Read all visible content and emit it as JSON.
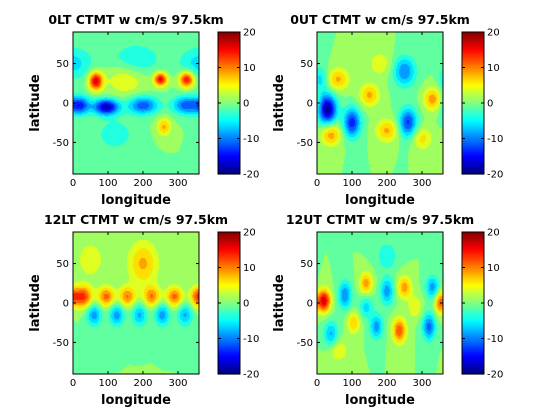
{
  "chart_data": [
    {
      "type": "heatmap",
      "title": "0LT CTMT w cm/s 97.5km",
      "xlabel": "longitude",
      "ylabel": "latitude",
      "xlim": [
        0,
        360
      ],
      "ylim": [
        -90,
        90
      ],
      "x_ticks": [
        0,
        100,
        200,
        300
      ],
      "y_ticks": [
        50,
        0,
        -50
      ],
      "colorbar": {
        "range": [
          -20,
          20
        ],
        "ticks": [
          20,
          10,
          0,
          -10,
          -20
        ]
      },
      "features": [
        {
          "lon": 65,
          "lat": 28,
          "w": 17,
          "sx": 14,
          "sy": 8
        },
        {
          "lon": 250,
          "lat": 30,
          "w": 16,
          "sx": 13,
          "sy": 6
        },
        {
          "lon": 325,
          "lat": 30,
          "w": 16,
          "sx": 15,
          "sy": 7
        },
        {
          "lon": 150,
          "lat": 30,
          "w": 5,
          "sx": 40,
          "sy": 14
        },
        {
          "lon": 20,
          "lat": -3,
          "w": -13,
          "sx": 20,
          "sy": 8
        },
        {
          "lon": 95,
          "lat": -5,
          "w": -18,
          "sx": 25,
          "sy": 7
        },
        {
          "lon": 200,
          "lat": -3,
          "w": -12,
          "sx": 30,
          "sy": 8
        },
        {
          "lon": 325,
          "lat": -3,
          "w": -12,
          "sx": 28,
          "sy": 8
        },
        {
          "lon": 0,
          "lat": 50,
          "w": -6,
          "sx": 40,
          "sy": 15
        },
        {
          "lon": 180,
          "lat": 55,
          "w": -5,
          "sx": 50,
          "sy": 15
        },
        {
          "lon": 260,
          "lat": -30,
          "w": 8,
          "sx": 14,
          "sy": 8
        },
        {
          "lon": 120,
          "lat": -40,
          "w": -4,
          "sx": 40,
          "sy": 15
        }
      ]
    },
    {
      "type": "heatmap",
      "title": "0UT CTMT w cm/s 97.5km",
      "xlabel": "longitude",
      "ylabel": "latitude",
      "xlim": [
        0,
        360
      ],
      "ylim": [
        -90,
        90
      ],
      "x_ticks": [
        0,
        100,
        200,
        300
      ],
      "y_ticks": [
        50,
        0,
        -50
      ],
      "colorbar": {
        "range": [
          -20,
          20
        ],
        "ticks": [
          20,
          10,
          0,
          -10,
          -20
        ]
      },
      "features": [
        {
          "lon": 30,
          "lat": -8,
          "w": -19,
          "sx": 18,
          "sy": 13
        },
        {
          "lon": 250,
          "lat": 40,
          "w": -10,
          "sx": 22,
          "sy": 13
        },
        {
          "lon": 60,
          "lat": 30,
          "w": 8,
          "sx": 22,
          "sy": 10
        },
        {
          "lon": 150,
          "lat": 10,
          "w": 8,
          "sx": 20,
          "sy": 10
        },
        {
          "lon": 330,
          "lat": 5,
          "w": 9,
          "sx": 18,
          "sy": 10
        },
        {
          "lon": 100,
          "lat": -25,
          "w": -14,
          "sx": 17,
          "sy": 13
        },
        {
          "lon": 260,
          "lat": -25,
          "w": -13,
          "sx": 18,
          "sy": 13
        },
        {
          "lon": 40,
          "lat": -40,
          "w": 9,
          "sx": 20,
          "sy": 10
        },
        {
          "lon": 200,
          "lat": -35,
          "w": 8,
          "sx": 22,
          "sy": 10
        },
        {
          "lon": 300,
          "lat": -45,
          "w": 6,
          "sx": 20,
          "sy": 10
        },
        {
          "lon": 10,
          "lat": 30,
          "w": -6,
          "sx": 15,
          "sy": 12
        },
        {
          "lon": 180,
          "lat": 50,
          "w": 4,
          "sx": 25,
          "sy": 12
        }
      ]
    },
    {
      "type": "heatmap",
      "title": "12LT CTMT w cm/s 97.5km",
      "xlabel": "longitude",
      "ylabel": "latitude",
      "xlim": [
        0,
        360
      ],
      "ylim": [
        -90,
        90
      ],
      "x_ticks": [
        0,
        100,
        200,
        300
      ],
      "y_ticks": [
        50,
        0,
        -50
      ],
      "colorbar": {
        "range": [
          -20,
          20
        ],
        "ticks": [
          20,
          10,
          0,
          -10,
          -20
        ]
      },
      "features": [
        {
          "lon": 30,
          "lat": 8,
          "w": 13,
          "sx": 18,
          "sy": 10
        },
        {
          "lon": 95,
          "lat": 8,
          "w": 11,
          "sx": 17,
          "sy": 9
        },
        {
          "lon": 155,
          "lat": 8,
          "w": 10,
          "sx": 17,
          "sy": 9
        },
        {
          "lon": 225,
          "lat": 8,
          "w": 10,
          "sx": 17,
          "sy": 9
        },
        {
          "lon": 290,
          "lat": 8,
          "w": 11,
          "sx": 17,
          "sy": 9
        },
        {
          "lon": 355,
          "lat": 8,
          "w": 11,
          "sx": 15,
          "sy": 9
        },
        {
          "lon": 60,
          "lat": -15,
          "w": -9,
          "sx": 15,
          "sy": 10
        },
        {
          "lon": 125,
          "lat": -15,
          "w": -9,
          "sx": 15,
          "sy": 10
        },
        {
          "lon": 190,
          "lat": -15,
          "w": -8,
          "sx": 15,
          "sy": 10
        },
        {
          "lon": 255,
          "lat": -15,
          "w": -9,
          "sx": 15,
          "sy": 10
        },
        {
          "lon": 320,
          "lat": -15,
          "w": -8,
          "sx": 15,
          "sy": 10
        },
        {
          "lon": 200,
          "lat": 50,
          "w": 8,
          "sx": 30,
          "sy": 20
        },
        {
          "lon": 50,
          "lat": 55,
          "w": 5,
          "sx": 25,
          "sy": 15
        }
      ]
    },
    {
      "type": "heatmap",
      "title": "12UT CTMT w cm/s 97.5km",
      "xlabel": "longitude",
      "ylabel": "latitude",
      "xlim": [
        0,
        360
      ],
      "ylim": [
        -90,
        90
      ],
      "x_ticks": [
        0,
        100,
        200,
        300
      ],
      "y_ticks": [
        50,
        0,
        -50
      ],
      "colorbar": {
        "range": [
          -20,
          20
        ],
        "ticks": [
          20,
          10,
          0,
          -10,
          -20
        ]
      },
      "features": [
        {
          "lon": 20,
          "lat": 3,
          "w": 17,
          "sx": 13,
          "sy": 10
        },
        {
          "lon": 80,
          "lat": 10,
          "w": -10,
          "sx": 13,
          "sy": 12
        },
        {
          "lon": 140,
          "lat": 25,
          "w": 9,
          "sx": 13,
          "sy": 10
        },
        {
          "lon": 250,
          "lat": 20,
          "w": 9,
          "sx": 14,
          "sy": 10
        },
        {
          "lon": 200,
          "lat": 15,
          "w": -9,
          "sx": 13,
          "sy": 12
        },
        {
          "lon": 330,
          "lat": 20,
          "w": -9,
          "sx": 13,
          "sy": 10
        },
        {
          "lon": 235,
          "lat": -35,
          "w": 12,
          "sx": 14,
          "sy": 11
        },
        {
          "lon": 170,
          "lat": -30,
          "w": -9,
          "sx": 13,
          "sy": 11
        },
        {
          "lon": 105,
          "lat": -25,
          "w": 7,
          "sx": 13,
          "sy": 10
        },
        {
          "lon": 320,
          "lat": -30,
          "w": -11,
          "sx": 13,
          "sy": 12
        },
        {
          "lon": 40,
          "lat": -40,
          "w": -8,
          "sx": 14,
          "sy": 12
        },
        {
          "lon": 350,
          "lat": 0,
          "w": 10,
          "sx": 10,
          "sy": 10
        },
        {
          "lon": 140,
          "lat": -5,
          "w": -6,
          "sx": 14,
          "sy": 10
        },
        {
          "lon": 280,
          "lat": -5,
          "w": 5,
          "sx": 14,
          "sy": 10
        },
        {
          "lon": 60,
          "lat": -60,
          "w": 5,
          "sx": 20,
          "sy": 10
        },
        {
          "lon": 200,
          "lat": 60,
          "w": -5,
          "sx": 20,
          "sy": 12
        }
      ]
    }
  ]
}
